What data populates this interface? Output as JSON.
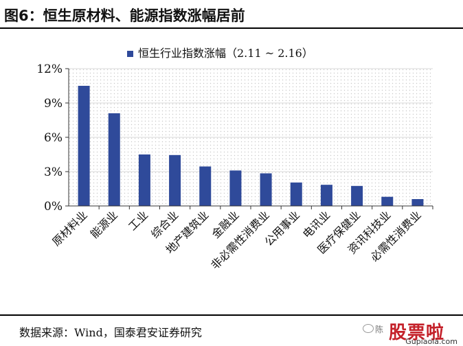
{
  "figure": {
    "title": "图6：恒生原材料、能源指数涨幅居前"
  },
  "chart_data": {
    "type": "bar",
    "series": [
      {
        "name": "恒生行业指数涨幅（2.11 ~ 2.16）",
        "values": [
          10.5,
          8.1,
          4.5,
          4.45,
          3.45,
          3.1,
          2.85,
          2.05,
          1.85,
          1.75,
          0.8,
          0.6
        ]
      }
    ],
    "categories": [
      "原材料业",
      "能源业",
      "工业",
      "综合业",
      "地产建筑业",
      "金融业",
      "非必需性消费业",
      "公用事业",
      "电讯业",
      "医疗保健业",
      "资讯科技业",
      "必需性消费业"
    ],
    "ylim": [
      0,
      12
    ],
    "yticks": [
      "0%",
      "3%",
      "6%",
      "9%",
      "12%"
    ],
    "grid": true,
    "legend_position": "top-center",
    "colors": {
      "bar": "#2f4a9a",
      "grid": "#d9d9d9",
      "dots": "#c8c8c8"
    }
  },
  "footer": {
    "source": "数据来源：Wind，国泰君安证券研究"
  },
  "watermark": {
    "small": "陈",
    "brand": "股票啦",
    "url": "Gupiaola.com",
    "icon": "wechat-icon"
  }
}
